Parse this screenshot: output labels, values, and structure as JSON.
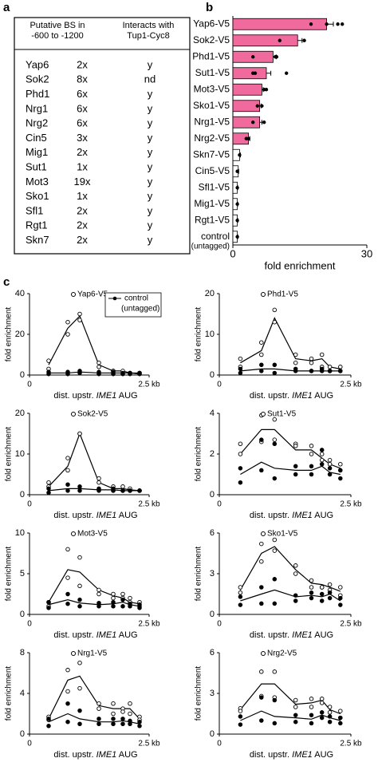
{
  "panels": [
    "a",
    "b",
    "c"
  ],
  "table": {
    "header": [
      "Putative BS in\n-600 to -1200",
      "Interacts with\nTup1-Cyc8"
    ],
    "rows": [
      [
        "Yap6",
        "2x",
        "y"
      ],
      [
        "Sok2",
        "8x",
        "nd"
      ],
      [
        "Phd1",
        "6x",
        "y"
      ],
      [
        "Nrg1",
        "6x",
        "y"
      ],
      [
        "Nrg2",
        "6x",
        "y"
      ],
      [
        "Cin5",
        "3x",
        "y"
      ],
      [
        "Mig1",
        "2x",
        "y"
      ],
      [
        "Sut1",
        "1x",
        "y"
      ],
      [
        "Mot3",
        "19x",
        "y"
      ],
      [
        "Sko1",
        "1x",
        "y"
      ],
      [
        "Sfl1",
        "2x",
        "y"
      ],
      [
        "Rgt1",
        "2x",
        "y"
      ],
      [
        "Skn7",
        "2x",
        "y"
      ]
    ]
  },
  "chart_data": [
    {
      "type": "hbar",
      "xlabel": "fold enrichment",
      "annotation": "(untagged)",
      "categories": [
        "Yap6-V5",
        "Sok2-V5",
        "Phd1-V5",
        "Sut1-V5",
        "Mot3-V5",
        "Sko1-V5",
        "Nrg1-V5",
        "Nrg2-V5",
        "Skn7-V5",
        "Cin5-V5",
        "Sfl1-V5",
        "Mig1-V5",
        "Rgt1-V5",
        "control"
      ],
      "values": [
        21,
        14.5,
        9,
        7.5,
        6.5,
        6,
        6,
        3.5,
        1.5,
        1.2,
        1,
        1,
        1,
        1
      ],
      "errors": [
        1.5,
        1,
        0.7,
        1,
        0.3,
        0.3,
        0.5,
        0.3,
        0.2,
        0.1,
        0.1,
        0.1,
        0.1,
        0.1
      ],
      "points": [
        [
          17.5,
          21,
          23.5,
          24.5
        ],
        [
          10.5,
          16
        ],
        [
          4.5,
          9.5,
          9.8
        ],
        [
          4.5,
          5,
          12
        ],
        [
          7,
          7.5
        ],
        [
          5.5,
          6.5
        ],
        [
          4.5,
          7
        ],
        [
          3,
          3.5
        ],
        [
          1.5
        ],
        [
          1
        ],
        [
          1
        ],
        [
          1
        ],
        [
          1
        ],
        [
          1
        ]
      ],
      "colors": [
        "#f06a9e",
        "#f06a9e",
        "#f06a9e",
        "#f06a9e",
        "#f06a9e",
        "#f06a9e",
        "#f06a9e",
        "#f06a9e",
        "#ffffff",
        "#ffffff",
        "#ffffff",
        "#ffffff",
        "#ffffff",
        "#ffffff"
      ],
      "xlim": [
        0,
        30
      ],
      "xticks": [
        0,
        30
      ]
    },
    {
      "type": "line",
      "ylabel": "fold enrichment",
      "xlabel": [
        "dist. upstr. ",
        "IME1",
        " AUG"
      ],
      "legend_subtitle": "(untagged)",
      "x": [
        0.4,
        0.8,
        1.05,
        1.45,
        1.75,
        1.95,
        2.1,
        2.3
      ],
      "xlim": [
        0,
        2.5
      ],
      "xticks": [
        0,
        {
          "value": 2.5,
          "label": "2.5 kb"
        }
      ],
      "ylim": [
        0,
        40
      ],
      "yticks": [
        0,
        20,
        40
      ],
      "series": [
        {
          "name": "Yap6-V5",
          "values": [
            5,
            23,
            29,
            5,
            2,
            2,
            1,
            1
          ],
          "points": [
            [
              3,
              20,
              27,
              4,
              2,
              1,
              1,
              1
            ],
            [
              7,
              26,
              30,
              6,
              2,
              2,
              1,
              1
            ]
          ]
        },
        {
          "name": "control",
          "values": [
            1,
            1,
            1.5,
            1,
            1,
            1,
            1,
            0.5
          ],
          "points": [
            [
              0.5,
              0.5,
              1,
              0.5,
              0.5,
              0.5,
              0.5,
              0.5
            ],
            [
              1.5,
              1.5,
              2,
              1.5,
              1.5,
              1,
              1,
              1
            ]
          ]
        }
      ]
    },
    {
      "type": "line",
      "ylabel": "fold enrichment",
      "xlabel": [
        "dist. upstr. ",
        "IME1",
        " AUG"
      ],
      "x": [
        0.4,
        0.8,
        1.05,
        1.45,
        1.75,
        1.95,
        2.1,
        2.3
      ],
      "xlim": [
        0,
        2.5
      ],
      "xticks": [
        0,
        {
          "value": 2.5,
          "label": "2.5 kb"
        }
      ],
      "ylim": [
        0,
        20
      ],
      "yticks": [
        0,
        10,
        20
      ],
      "series": [
        {
          "name": "Phd1-V5",
          "values": [
            3,
            6,
            14,
            4,
            3.5,
            4,
            2,
            1.5
          ],
          "points": [
            [
              2,
              5,
              13,
              3,
              3,
              2,
              1,
              1
            ],
            [
              4,
              8,
              16,
              5,
              4,
              5,
              2,
              2
            ]
          ]
        },
        {
          "values": [
            1,
            1.5,
            1.5,
            1,
            1,
            1,
            1,
            1
          ],
          "points": [
            [
              0.5,
              1,
              0.5,
              1,
              1,
              1,
              1,
              1
            ],
            [
              1.5,
              2.5,
              2.5,
              1.5,
              1,
              1.5,
              1,
              1
            ]
          ]
        }
      ]
    },
    {
      "type": "line",
      "ylabel": "fold enrichment",
      "xlabel": [
        "dist. upstr. ",
        "IME1",
        " AUG"
      ],
      "x": [
        0.4,
        0.8,
        1.05,
        1.45,
        1.75,
        1.95,
        2.1,
        2.3
      ],
      "xlim": [
        0,
        2.5
      ],
      "xticks": [
        0,
        {
          "value": 2.5,
          "label": "2.5 kb"
        }
      ],
      "ylim": [
        0,
        20
      ],
      "yticks": [
        0,
        10,
        20
      ],
      "series": [
        {
          "name": "Sok2-V5",
          "values": [
            2,
            7,
            15,
            3,
            1.5,
            1.5,
            1.2,
            1
          ],
          "points": [
            [
              2,
              6,
              15,
              3,
              1,
              1,
              1,
              1
            ],
            [
              3,
              9,
              15,
              4,
              2,
              2,
              1.5,
              1
            ]
          ]
        },
        {
          "values": [
            1,
            1.5,
            1.5,
            1.2,
            1.2,
            1,
            1,
            1
          ],
          "points": [
            [
              0.5,
              1,
              1,
              1,
              1,
              1,
              1,
              1
            ],
            [
              1.5,
              2.5,
              2,
              1.5,
              1.5,
              1,
              1,
              1
            ]
          ]
        }
      ]
    },
    {
      "type": "line",
      "ylabel": "fold enrichment",
      "xlabel": [
        "dist. upstr. ",
        "IME1",
        " AUG"
      ],
      "x": [
        0.4,
        0.8,
        1.05,
        1.45,
        1.75,
        1.95,
        2.1,
        2.3
      ],
      "xlim": [
        0,
        2.5
      ],
      "xticks": [
        0,
        {
          "value": 2.5,
          "label": "2.5 kb"
        }
      ],
      "ylim": [
        0,
        4
      ],
      "yticks": [
        0,
        2,
        4
      ],
      "series": [
        {
          "name": "Sut1-V5",
          "values": [
            2,
            3.2,
            3.2,
            2.2,
            2.2,
            1.8,
            1.5,
            1.3
          ],
          "points": [
            [
              2,
              3.9,
              3.7,
              2.5,
              2,
              2,
              1.5,
              1.5
            ],
            [
              2.5,
              2.6,
              2.7,
              2.4,
              2.4,
              1.7,
              1.7,
              1.2
            ]
          ]
        },
        {
          "values": [
            1,
            1.6,
            1.3,
            1.2,
            1.2,
            1.4,
            1.1,
            1
          ],
          "points": [
            [
              0.6,
              1.2,
              0.8,
              1,
              1,
              1.5,
              1,
              0.8
            ],
            [
              1.3,
              2.7,
              2.5,
              1.4,
              1.4,
              2.2,
              1.3,
              1.2
            ]
          ]
        }
      ]
    },
    {
      "type": "line",
      "ylabel": "fold enrichment",
      "xlabel": [
        "dist. upstr. ",
        "IME1",
        " AUG"
      ],
      "x": [
        0.4,
        0.8,
        1.05,
        1.45,
        1.75,
        1.95,
        2.1,
        2.3
      ],
      "xlim": [
        0,
        2.5
      ],
      "xticks": [
        0,
        {
          "value": 2.5,
          "label": "2.5 kb"
        }
      ],
      "ylim": [
        0,
        10
      ],
      "yticks": [
        0,
        5,
        10
      ],
      "series": [
        {
          "name": "Mot3-V5",
          "values": [
            1.5,
            5.5,
            5.2,
            3,
            2.3,
            2,
            1.5,
            1.3
          ],
          "points": [
            [
              1.5,
              8,
              7,
              3,
              2.5,
              2.5,
              2,
              1.5
            ],
            [
              1,
              4.5,
              3.5,
              2.5,
              2,
              2,
              1.5,
              1
            ]
          ]
        },
        {
          "values": [
            1.2,
            1.8,
            1.4,
            1.2,
            1.3,
            1.5,
            1.2,
            1
          ],
          "points": [
            [
              0.8,
              1.3,
              1,
              1,
              1,
              1,
              1,
              0.8
            ],
            [
              1.5,
              2.5,
              1.8,
              1.4,
              1.5,
              1.8,
              1.3,
              1.2
            ]
          ]
        }
      ]
    },
    {
      "type": "line",
      "ylabel": "fold enrichment",
      "xlabel": [
        "dist. upstr. ",
        "IME1",
        " AUG"
      ],
      "x": [
        0.4,
        0.8,
        1.05,
        1.45,
        1.75,
        1.95,
        2.1,
        2.3
      ],
      "xlim": [
        0,
        2.5
      ],
      "xticks": [
        0,
        {
          "value": 2.5,
          "label": "2.5 kb"
        }
      ],
      "ylim": [
        0,
        6
      ],
      "yticks": [
        0,
        3,
        6
      ],
      "series": [
        {
          "name": "Sko1-V5",
          "values": [
            1.8,
            4.5,
            5,
            3.3,
            2.3,
            2.2,
            2,
            1.7
          ],
          "points": [
            [
              2,
              5.2,
              5.5,
              3.6,
              2.5,
              2,
              2.2,
              2
            ],
            [
              1.6,
              3.9,
              4.7,
              3,
              2,
              2,
              1.8,
              1.4
            ]
          ]
        },
        {
          "values": [
            1,
            1.5,
            1.8,
            1.3,
            1.4,
            1.3,
            1.5,
            1
          ],
          "points": [
            [
              0.7,
              0.8,
              0.8,
              1,
              1.2,
              1,
              1.2,
              0.7
            ],
            [
              1.3,
              2,
              2.6,
              1.4,
              1.6,
              1.5,
              1.6,
              1.2
            ]
          ]
        }
      ]
    },
    {
      "type": "line",
      "ylabel": "fold enrichment",
      "xlabel": [
        "dist. upstr. ",
        "IME1",
        " AUG"
      ],
      "x": [
        0.4,
        0.8,
        1.05,
        1.45,
        1.75,
        1.95,
        2.1,
        2.3
      ],
      "xlim": [
        0,
        2.5
      ],
      "xticks": [
        0,
        {
          "value": 2.5,
          "label": "2.5 kb"
        }
      ],
      "ylim": [
        0,
        8
      ],
      "yticks": [
        0,
        4,
        8
      ],
      "series": [
        {
          "name": "Nrg1-V5",
          "values": [
            1.5,
            5.3,
            5.7,
            2.8,
            2.5,
            2.5,
            2.5,
            1.5
          ],
          "points": [
            [
              1.7,
              6.3,
              7,
              3,
              3,
              2.5,
              3,
              1.7
            ],
            [
              1.4,
              4.2,
              4.5,
              2.5,
              2,
              2.2,
              2,
              1.4
            ]
          ]
        },
        {
          "values": [
            1.2,
            2,
            1.5,
            1.2,
            1.2,
            1.3,
            1.2,
            1
          ],
          "points": [
            [
              0.8,
              1.2,
              1,
              1,
              1,
              1,
              1,
              0.8
            ],
            [
              1.5,
              3,
              2.3,
              1.5,
              1.5,
              1.5,
              1.3,
              1.2
            ]
          ]
        }
      ]
    },
    {
      "type": "line",
      "ylabel": "fold enrichment",
      "xlabel": [
        "dist. upstr. ",
        "IME1",
        " AUG"
      ],
      "x": [
        0.4,
        0.8,
        1.05,
        1.45,
        1.75,
        1.95,
        2.1,
        2.3
      ],
      "xlim": [
        0,
        2.5
      ],
      "xticks": [
        0,
        {
          "value": 2.5,
          "label": "2.5 kb"
        }
      ],
      "ylim": [
        0,
        6
      ],
      "yticks": [
        0,
        3,
        6
      ],
      "series": [
        {
          "name": "Nrg2-V5",
          "values": [
            1.8,
            3.7,
            3.7,
            2.2,
            2.3,
            2.5,
            1.8,
            1.5
          ],
          "points": [
            [
              1.9,
              4.6,
              4.6,
              2.5,
              2.6,
              2.6,
              2,
              1.7
            ],
            [
              1.7,
              2.8,
              2.7,
              2,
              2,
              2.3,
              1.6,
              1.2
            ]
          ]
        },
        {
          "values": [
            1,
            1.7,
            1.3,
            1.2,
            1.1,
            1.4,
            1.2,
            1
          ],
          "points": [
            [
              0.7,
              1,
              0.8,
              0.9,
              0.8,
              1.2,
              0.9,
              0.8
            ],
            [
              1.3,
              2.7,
              2.5,
              1.4,
              1.4,
              1.6,
              1.3,
              1.2
            ]
          ]
        }
      ]
    }
  ]
}
